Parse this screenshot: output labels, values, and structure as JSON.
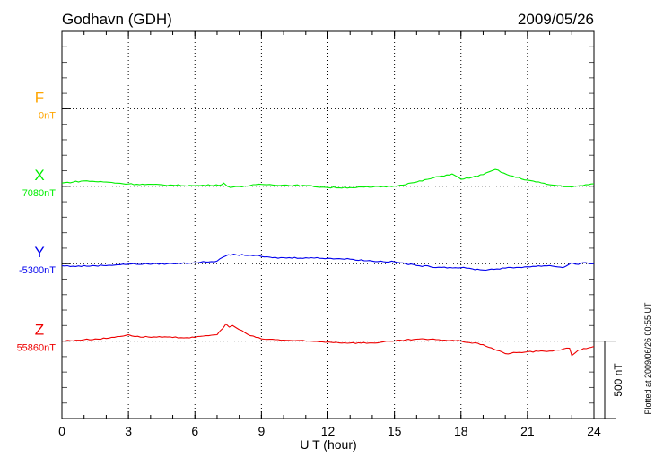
{
  "chart_data": {
    "type": "line",
    "title": "Godhavn (GDH)",
    "date": "2009/05/26",
    "xlabel": "U T (hour)",
    "xlim": [
      0,
      24
    ],
    "xticks": [
      "0",
      "3",
      "6",
      "9",
      "12",
      "15",
      "18",
      "21",
      "24"
    ],
    "scale_bar_nT": 500,
    "scale_label": "500 nT",
    "footnote": "Plotted at 2009/06/26 00:55 UT",
    "grid": true,
    "series": [
      {
        "name": "F",
        "baseline_label": "0nT",
        "color": "#ffa500",
        "points": []
      },
      {
        "name": "X",
        "baseline_label": "7080nT",
        "color": "#00ee00",
        "points": [
          [
            0,
            21
          ],
          [
            1,
            35
          ],
          [
            2,
            27
          ],
          [
            3,
            15
          ],
          [
            5,
            7
          ],
          [
            6,
            4
          ],
          [
            7.2,
            10
          ],
          [
            7.3,
            21
          ],
          [
            7.45,
            2
          ],
          [
            7.6,
            -8
          ],
          [
            8,
            -2
          ],
          [
            9,
            12
          ],
          [
            11,
            4
          ],
          [
            12,
            -8
          ],
          [
            13,
            -8
          ],
          [
            14,
            -5
          ],
          [
            15,
            1
          ],
          [
            16,
            27
          ],
          [
            17,
            62
          ],
          [
            17.6,
            79
          ],
          [
            18,
            45
          ],
          [
            18.5,
            58
          ],
          [
            19,
            75
          ],
          [
            19.55,
            108
          ],
          [
            20.2,
            68
          ],
          [
            21,
            40
          ],
          [
            22,
            10
          ],
          [
            23,
            -5
          ],
          [
            24,
            16
          ]
        ]
      },
      {
        "name": "Y",
        "baseline_label": "-5300nT",
        "color": "#0000ee",
        "points": [
          [
            0,
            -14
          ],
          [
            0.5,
            -17
          ],
          [
            1.5,
            -14
          ],
          [
            3,
            -3
          ],
          [
            5,
            0
          ],
          [
            6,
            6
          ],
          [
            7,
            17
          ],
          [
            7.5,
            58
          ],
          [
            8.5,
            55
          ],
          [
            9.5,
            38
          ],
          [
            11,
            38
          ],
          [
            12,
            35
          ],
          [
            13,
            29
          ],
          [
            14,
            17
          ],
          [
            15,
            12
          ],
          [
            16,
            -12
          ],
          [
            17,
            -23
          ],
          [
            18,
            -26
          ],
          [
            19,
            -41
          ],
          [
            20,
            -29
          ],
          [
            21,
            -20
          ],
          [
            22,
            -12
          ],
          [
            22.6,
            -26
          ],
          [
            23,
            6
          ],
          [
            23.3,
            -5
          ],
          [
            23.5,
            6
          ],
          [
            24,
            0
          ]
        ]
      },
      {
        "name": "Z",
        "baseline_label": "55860nT",
        "color": "#ee0000",
        "points": [
          [
            0,
            0
          ],
          [
            1,
            9
          ],
          [
            2,
            17
          ],
          [
            3,
            41
          ],
          [
            3.3,
            29
          ],
          [
            5,
            23
          ],
          [
            6,
            23
          ],
          [
            6.5,
            35
          ],
          [
            7,
            41
          ],
          [
            7.4,
            110
          ],
          [
            7.55,
            90
          ],
          [
            7.7,
            100
          ],
          [
            7.85,
            87
          ],
          [
            8.5,
            35
          ],
          [
            9,
            14
          ],
          [
            10,
            6
          ],
          [
            11,
            0
          ],
          [
            12,
            -6
          ],
          [
            13,
            -12
          ],
          [
            14,
            -12
          ],
          [
            15,
            0
          ],
          [
            16,
            12
          ],
          [
            17,
            9
          ],
          [
            18,
            0
          ],
          [
            19,
            -23
          ],
          [
            20,
            -81
          ],
          [
            21,
            -69
          ],
          [
            22,
            -64
          ],
          [
            22.9,
            -46
          ],
          [
            23,
            -93
          ],
          [
            23.3,
            -58
          ],
          [
            24,
            -35
          ]
        ]
      }
    ]
  }
}
